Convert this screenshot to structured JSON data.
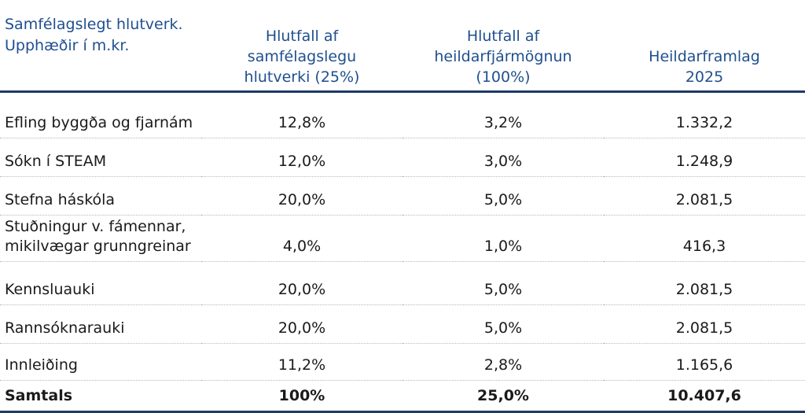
{
  "table": {
    "header": [
      "Samfélagslegt hlutverk.\nUpphæðir í m.kr.",
      "Hlutfall af\nsamfélagslegu\nhlutverki (25%)",
      "Hlutfall af\nheildarfjármögnun\n(100%)",
      "Heildarframlag\n2025"
    ],
    "rows": [
      [
        "Efling byggða og fjarnám",
        "12,8%",
        "3,2%",
        "1.332,2"
      ],
      [
        "Sókn í STEAM",
        "12,0%",
        "3,0%",
        "1.248,9"
      ],
      [
        "Stefna háskóla",
        "20,0%",
        "5,0%",
        "2.081,5"
      ],
      [
        "Stuðningur v. fámennar,\nmikilvægar grunngreinar",
        "4,0%",
        "1,0%",
        "416,3"
      ],
      [
        "Kennsluauki",
        "20,0%",
        "5,0%",
        "2.081,5"
      ],
      [
        "Rannsóknarauki",
        "20,0%",
        "5,0%",
        "2.081,5"
      ],
      [
        "Innleiðing",
        "11,2%",
        "2,8%",
        "1.165,6"
      ]
    ],
    "total": [
      "Samtals",
      "100%",
      "25,0%",
      "10.407,6"
    ]
  }
}
